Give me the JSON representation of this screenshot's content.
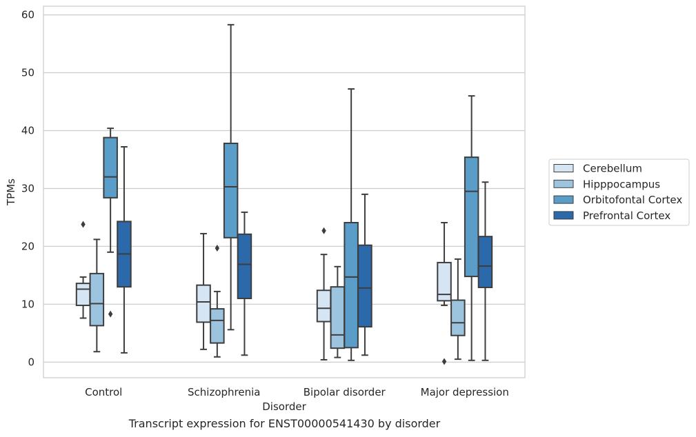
{
  "caption": "Transcript expression for ENST00000541430 by disorder",
  "chart_data": {
    "type": "boxplot",
    "title": "",
    "xlabel": "Disorder",
    "ylabel": "TPMs",
    "ylim": [
      -2.7,
      61.5
    ],
    "yticks": [
      0,
      10,
      20,
      30,
      40,
      50,
      60
    ],
    "grid": "horizontal",
    "legend_position": "right",
    "categories": [
      "Control",
      "Schizophrenia",
      "Bipolar disorder",
      "Major depression"
    ],
    "series": [
      {
        "name": "Cerebellum",
        "color": "#d6e5f3",
        "boxes": [
          {
            "whisker_low": 7.6,
            "q1": 9.8,
            "median": 12.6,
            "q3": 13.6,
            "whisker_high": 14.7,
            "outliers": [
              23.8
            ]
          },
          {
            "whisker_low": 2.2,
            "q1": 6.9,
            "median": 10.4,
            "q3": 13.3,
            "whisker_high": 22.2,
            "outliers": []
          },
          {
            "whisker_low": 0.4,
            "q1": 7.0,
            "median": 9.3,
            "q3": 12.4,
            "whisker_high": 18.6,
            "outliers": [
              22.7
            ]
          },
          {
            "whisker_low": 9.8,
            "q1": 10.6,
            "median": 11.7,
            "q3": 17.2,
            "whisker_high": 24.1,
            "outliers": [
              0.1
            ]
          }
        ]
      },
      {
        "name": "Hipppocampus",
        "color": "#9dc4de",
        "boxes": [
          {
            "whisker_low": 1.8,
            "q1": 6.3,
            "median": 10.1,
            "q3": 15.3,
            "whisker_high": 21.2,
            "outliers": []
          },
          {
            "whisker_low": 0.9,
            "q1": 3.3,
            "median": 7.2,
            "q3": 9.2,
            "whisker_high": 12.2,
            "outliers": [
              19.7
            ]
          },
          {
            "whisker_low": 0.8,
            "q1": 2.4,
            "median": 4.7,
            "q3": 13.0,
            "whisker_high": 16.5,
            "outliers": []
          },
          {
            "whisker_low": 0.5,
            "q1": 4.6,
            "median": 6.8,
            "q3": 10.7,
            "whisker_high": 17.8,
            "outliers": []
          }
        ]
      },
      {
        "name": "Orbitofontal Cortex",
        "color": "#5a9dc8",
        "boxes": [
          {
            "whisker_low": 19.0,
            "q1": 28.4,
            "median": 32.0,
            "q3": 38.8,
            "whisker_high": 40.4,
            "outliers": [
              8.3
            ]
          },
          {
            "whisker_low": 5.6,
            "q1": 21.5,
            "median": 30.3,
            "q3": 37.8,
            "whisker_high": 58.3,
            "outliers": []
          },
          {
            "whisker_low": 0.3,
            "q1": 2.5,
            "median": 14.7,
            "q3": 24.1,
            "whisker_high": 47.2,
            "outliers": []
          },
          {
            "whisker_low": 0.3,
            "q1": 14.8,
            "median": 29.5,
            "q3": 35.4,
            "whisker_high": 46.0,
            "outliers": []
          }
        ]
      },
      {
        "name": "Prefrontal Cortex",
        "color": "#2c69ab",
        "boxes": [
          {
            "whisker_low": 1.6,
            "q1": 13.0,
            "median": 18.7,
            "q3": 24.3,
            "whisker_high": 37.2,
            "outliers": []
          },
          {
            "whisker_low": 1.2,
            "q1": 11.0,
            "median": 16.9,
            "q3": 22.1,
            "whisker_high": 25.9,
            "outliers": []
          },
          {
            "whisker_low": 1.2,
            "q1": 6.1,
            "median": 12.8,
            "q3": 20.2,
            "whisker_high": 29.0,
            "outliers": []
          },
          {
            "whisker_low": 0.3,
            "q1": 12.9,
            "median": 16.6,
            "q3": 21.7,
            "whisker_high": 31.1,
            "outliers": []
          }
        ]
      }
    ]
  }
}
